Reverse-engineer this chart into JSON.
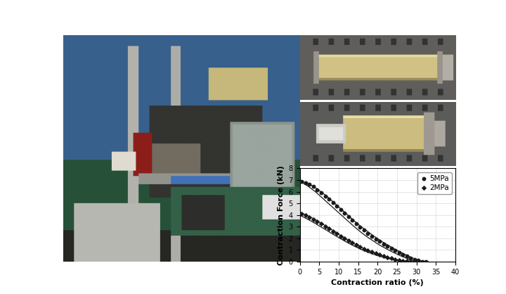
{
  "ylabel": "Contraction Force (kN)",
  "xlabel": "Contraction ratio (%)",
  "xlim": [
    0,
    40
  ],
  "ylim": [
    0,
    8
  ],
  "xticks": [
    0,
    5,
    10,
    15,
    20,
    25,
    30,
    35,
    40
  ],
  "yticks": [
    0,
    1,
    2,
    3,
    4,
    5,
    6,
    7,
    8
  ],
  "legend_5mpa": "5MPa",
  "legend_2mpa": "2MPa",
  "curve_5mpa_upper_x": [
    0,
    1,
    2,
    3,
    4,
    5,
    6,
    7,
    8,
    9,
    10,
    11,
    12,
    13,
    14,
    15,
    16,
    17,
    18,
    19,
    20,
    21,
    22,
    23,
    24,
    25,
    26,
    27,
    28,
    29,
    30,
    31,
    32,
    33
  ],
  "curve_5mpa_upper_y": [
    6.95,
    6.85,
    6.7,
    6.55,
    6.35,
    6.1,
    5.85,
    5.6,
    5.3,
    5.0,
    4.7,
    4.4,
    4.1,
    3.8,
    3.5,
    3.2,
    2.95,
    2.7,
    2.45,
    2.2,
    1.98,
    1.75,
    1.55,
    1.35,
    1.15,
    0.97,
    0.8,
    0.63,
    0.47,
    0.32,
    0.18,
    0.08,
    0.02,
    0.0
  ],
  "curve_5mpa_lower_x": [
    0,
    1,
    2,
    3,
    4,
    5,
    6,
    7,
    8,
    9,
    10,
    11,
    12,
    13,
    14,
    15,
    16,
    17,
    18,
    19,
    20,
    21,
    22,
    23,
    24,
    25,
    26,
    27,
    28,
    29,
    30,
    31,
    32,
    33
  ],
  "curve_5mpa_lower_y": [
    6.85,
    6.7,
    6.5,
    6.25,
    6.0,
    5.7,
    5.4,
    5.1,
    4.8,
    4.5,
    4.2,
    3.9,
    3.6,
    3.3,
    3.0,
    2.72,
    2.45,
    2.2,
    1.97,
    1.75,
    1.53,
    1.33,
    1.15,
    0.97,
    0.8,
    0.64,
    0.49,
    0.35,
    0.22,
    0.12,
    0.04,
    0.01,
    0.0,
    0.0
  ],
  "curve_2mpa_upper_x": [
    0,
    1,
    2,
    3,
    4,
    5,
    6,
    7,
    8,
    9,
    10,
    11,
    12,
    13,
    14,
    15,
    16,
    17,
    18,
    19,
    20,
    21,
    22,
    23,
    24,
    25,
    26,
    27,
    28,
    29,
    30,
    31
  ],
  "curve_2mpa_upper_y": [
    4.25,
    4.1,
    3.95,
    3.78,
    3.6,
    3.4,
    3.2,
    3.0,
    2.78,
    2.56,
    2.34,
    2.13,
    1.93,
    1.73,
    1.54,
    1.37,
    1.2,
    1.05,
    0.91,
    0.78,
    0.65,
    0.54,
    0.43,
    0.33,
    0.24,
    0.17,
    0.11,
    0.06,
    0.03,
    0.01,
    0.0,
    0.0
  ],
  "curve_2mpa_lower_x": [
    0,
    1,
    2,
    3,
    4,
    5,
    6,
    7,
    8,
    9,
    10,
    11,
    12,
    13,
    14,
    15,
    16,
    17,
    18,
    19,
    20,
    21,
    22,
    23,
    24,
    25,
    26,
    27,
    28,
    29,
    30,
    31
  ],
  "curve_2mpa_lower_y": [
    3.98,
    3.82,
    3.64,
    3.46,
    3.27,
    3.07,
    2.87,
    2.67,
    2.46,
    2.26,
    2.06,
    1.87,
    1.68,
    1.5,
    1.33,
    1.17,
    1.02,
    0.88,
    0.75,
    0.63,
    0.52,
    0.42,
    0.33,
    0.25,
    0.18,
    0.12,
    0.07,
    0.04,
    0.02,
    0.01,
    0.0,
    0.0
  ],
  "dots_5mpa_x": [
    0.5,
    1.5,
    2.5,
    3.5,
    4.5,
    5.5,
    6.5,
    7.5,
    8.5,
    9.5,
    10.5,
    11.5,
    12.5,
    13.5,
    14.5,
    15.5,
    16.5,
    17.5,
    18.5,
    19.5,
    20.5,
    21.5,
    22.5,
    23.5,
    24.5,
    25.5,
    26.5,
    27.5,
    28.5,
    29.5,
    30.5,
    31.5,
    32.5
  ],
  "dots_5mpa_y": [
    6.9,
    6.77,
    6.62,
    6.45,
    6.17,
    5.9,
    5.62,
    5.35,
    5.05,
    4.75,
    4.45,
    4.15,
    3.85,
    3.55,
    3.25,
    2.97,
    2.7,
    2.43,
    2.17,
    1.95,
    1.74,
    1.53,
    1.33,
    1.13,
    0.95,
    0.78,
    0.62,
    0.46,
    0.32,
    0.2,
    0.1,
    0.03,
    0.0
  ],
  "dots_2mpa_x": [
    0.5,
    1.5,
    2.5,
    3.5,
    4.5,
    5.5,
    6.5,
    7.5,
    8.5,
    9.5,
    10.5,
    11.5,
    12.5,
    13.5,
    14.5,
    15.5,
    16.5,
    17.5,
    18.5,
    19.5,
    20.5,
    21.5,
    22.5,
    23.5,
    24.5,
    25.5,
    26.5,
    27.5,
    28.5,
    29.5,
    30.5
  ],
  "dots_2mpa_y": [
    4.12,
    3.97,
    3.8,
    3.62,
    3.43,
    3.23,
    3.03,
    2.83,
    2.62,
    2.41,
    2.2,
    2.0,
    1.81,
    1.61,
    1.43,
    1.27,
    1.11,
    0.96,
    0.83,
    0.7,
    0.59,
    0.48,
    0.38,
    0.29,
    0.21,
    0.14,
    0.09,
    0.05,
    0.02,
    0.01,
    0.0
  ],
  "bg_color": "#ffffff",
  "line_color": "#1a1a1a",
  "photo_bg": [
    0.35,
    0.38,
    0.32
  ],
  "photo_blue": [
    0.22,
    0.38,
    0.55
  ],
  "photo_green": [
    0.15,
    0.32,
    0.22
  ],
  "photo_metal": [
    0.62,
    0.62,
    0.6
  ],
  "img1_bg": [
    0.38,
    0.38,
    0.36
  ],
  "img1_muscle": [
    0.82,
    0.76,
    0.52
  ],
  "img2_bg": [
    0.36,
    0.37,
    0.35
  ],
  "img2_muscle": [
    0.8,
    0.74,
    0.5
  ]
}
